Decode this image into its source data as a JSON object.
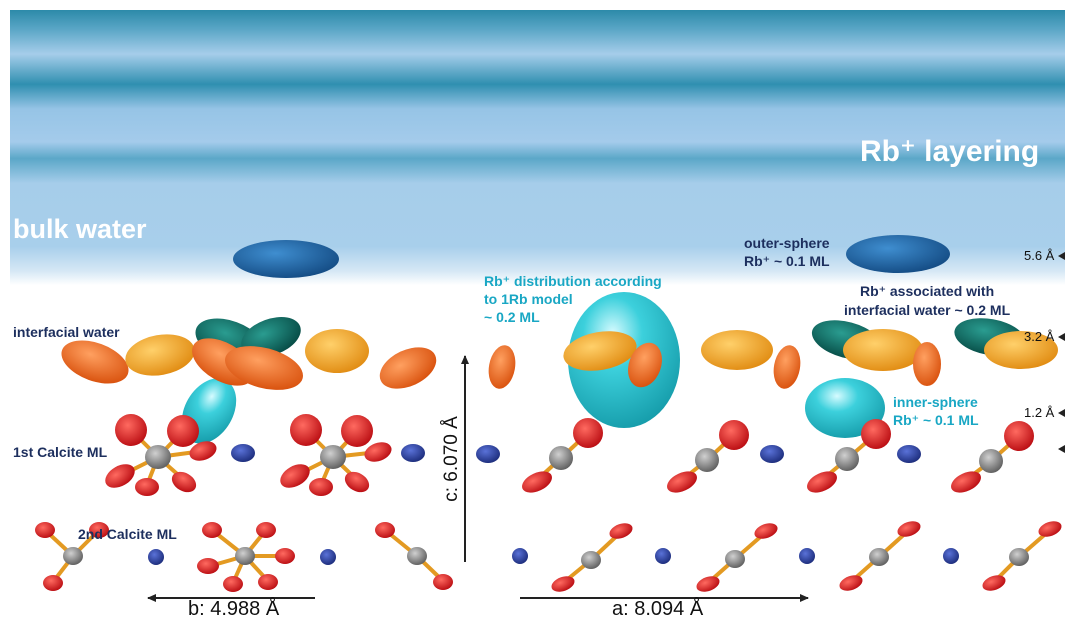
{
  "labels": {
    "rb_layering": "Rb⁺ layering",
    "bulk_water": "bulk water",
    "interfacial_water": "interfacial water",
    "calcite_1st": "1st Calcite ML",
    "calcite_2nd": "2nd Calcite ML",
    "outer_sphere_l1": "outer-sphere",
    "outer_sphere_l2": "Rb⁺ ~ 0.1 ML",
    "interfacial_assoc_l1": "Rb⁺ associated with",
    "interfacial_assoc_l2": "interfacial water ~ 0.2 ML",
    "distribution_l1": "Rb⁺ distribution according",
    "distribution_l2": "to 1Rb model",
    "distribution_l3": "~ 0.2 ML",
    "inner_sphere_l1": "inner-sphere",
    "inner_sphere_l2": "Rb⁺ ~ 0.1 ML",
    "height_56": "5.6 Å",
    "height_32": "3.2 Å",
    "height_12": "1.2 Å",
    "axis_c": "c: 6.070 Å",
    "axis_b": "b: 4.988 Å",
    "axis_a": "a: 8.094 Å"
  },
  "colors": {
    "water_top": "#2f8fb0",
    "water_light": "#a6cdea",
    "rb_blue": "#1f5e9c",
    "rb_cyan": "#27c0cc",
    "rb_teal": "#0f6e66",
    "water_orange": "#f0a020",
    "water_orange_dark": "#e8701a",
    "oxygen_red": "#d8151c",
    "calcium_blue": "#283c9a",
    "carbon_gray": "#808080",
    "bond_orange": "#e39a22"
  }
}
